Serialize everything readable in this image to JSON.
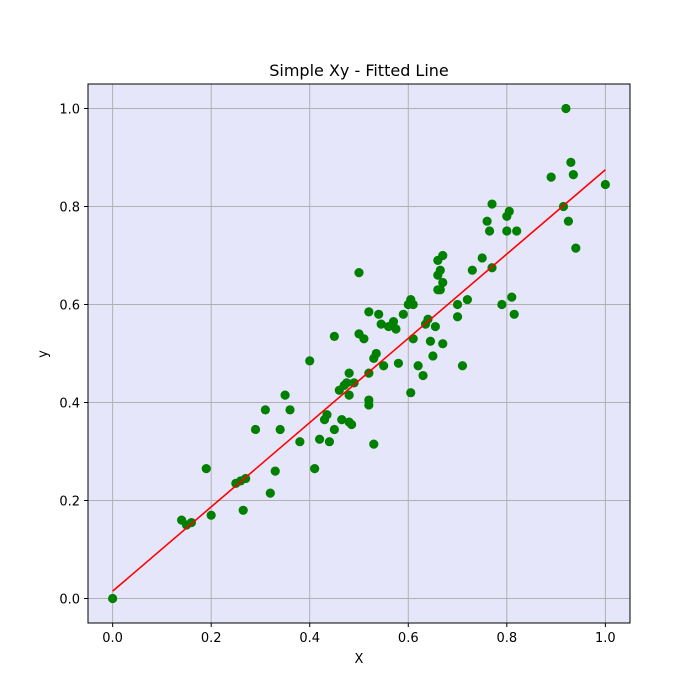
{
  "chart_data": {
    "type": "scatter",
    "title": "Simple Xy - Fitted Line",
    "xlabel": "X",
    "ylabel": "y",
    "xlim": [
      -0.05,
      1.05
    ],
    "ylim": [
      -0.05,
      1.05
    ],
    "x_ticks": [
      0.0,
      0.2,
      0.4,
      0.6,
      0.8,
      1.0
    ],
    "y_ticks": [
      0.0,
      0.2,
      0.4,
      0.6,
      0.8,
      1.0
    ],
    "x_tick_labels": [
      "0.0",
      "0.2",
      "0.4",
      "0.6",
      "0.8",
      "1.0"
    ],
    "y_tick_labels": [
      "0.0",
      "0.2",
      "0.4",
      "0.6",
      "0.8",
      "1.0"
    ],
    "grid": true,
    "background_color": "#e6e6fa",
    "grid_color": "#b0b0b0",
    "series": [
      {
        "kind": "points",
        "color": "#008000",
        "points": [
          [
            0.0,
            0.0
          ],
          [
            0.14,
            0.16
          ],
          [
            0.15,
            0.15
          ],
          [
            0.16,
            0.155
          ],
          [
            0.19,
            0.265
          ],
          [
            0.2,
            0.17
          ],
          [
            0.25,
            0.235
          ],
          [
            0.26,
            0.24
          ],
          [
            0.265,
            0.18
          ],
          [
            0.27,
            0.245
          ],
          [
            0.29,
            0.345
          ],
          [
            0.31,
            0.385
          ],
          [
            0.32,
            0.215
          ],
          [
            0.33,
            0.26
          ],
          [
            0.34,
            0.345
          ],
          [
            0.35,
            0.415
          ],
          [
            0.36,
            0.385
          ],
          [
            0.38,
            0.32
          ],
          [
            0.4,
            0.485
          ],
          [
            0.41,
            0.265
          ],
          [
            0.42,
            0.325
          ],
          [
            0.43,
            0.365
          ],
          [
            0.435,
            0.375
          ],
          [
            0.44,
            0.32
          ],
          [
            0.45,
            0.345
          ],
          [
            0.45,
            0.535
          ],
          [
            0.46,
            0.425
          ],
          [
            0.465,
            0.365
          ],
          [
            0.47,
            0.435
          ],
          [
            0.475,
            0.44
          ],
          [
            0.48,
            0.46
          ],
          [
            0.48,
            0.415
          ],
          [
            0.48,
            0.36
          ],
          [
            0.485,
            0.355
          ],
          [
            0.49,
            0.44
          ],
          [
            0.5,
            0.54
          ],
          [
            0.5,
            0.665
          ],
          [
            0.51,
            0.53
          ],
          [
            0.52,
            0.585
          ],
          [
            0.52,
            0.405
          ],
          [
            0.52,
            0.395
          ],
          [
            0.52,
            0.46
          ],
          [
            0.53,
            0.315
          ],
          [
            0.53,
            0.49
          ],
          [
            0.535,
            0.5
          ],
          [
            0.54,
            0.58
          ],
          [
            0.545,
            0.56
          ],
          [
            0.55,
            0.475
          ],
          [
            0.56,
            0.555
          ],
          [
            0.57,
            0.565
          ],
          [
            0.575,
            0.55
          ],
          [
            0.58,
            0.48
          ],
          [
            0.59,
            0.58
          ],
          [
            0.6,
            0.6
          ],
          [
            0.605,
            0.61
          ],
          [
            0.605,
            0.42
          ],
          [
            0.61,
            0.53
          ],
          [
            0.61,
            0.6
          ],
          [
            0.62,
            0.475
          ],
          [
            0.63,
            0.455
          ],
          [
            0.635,
            0.56
          ],
          [
            0.64,
            0.57
          ],
          [
            0.645,
            0.525
          ],
          [
            0.65,
            0.495
          ],
          [
            0.655,
            0.555
          ],
          [
            0.66,
            0.69
          ],
          [
            0.66,
            0.66
          ],
          [
            0.66,
            0.63
          ],
          [
            0.665,
            0.67
          ],
          [
            0.665,
            0.63
          ],
          [
            0.67,
            0.645
          ],
          [
            0.67,
            0.52
          ],
          [
            0.67,
            0.7
          ],
          [
            0.7,
            0.575
          ],
          [
            0.7,
            0.6
          ],
          [
            0.71,
            0.475
          ],
          [
            0.72,
            0.61
          ],
          [
            0.73,
            0.67
          ],
          [
            0.75,
            0.695
          ],
          [
            0.76,
            0.77
          ],
          [
            0.765,
            0.75
          ],
          [
            0.77,
            0.675
          ],
          [
            0.77,
            0.805
          ],
          [
            0.79,
            0.6
          ],
          [
            0.8,
            0.78
          ],
          [
            0.8,
            0.75
          ],
          [
            0.805,
            0.79
          ],
          [
            0.81,
            0.615
          ],
          [
            0.815,
            0.58
          ],
          [
            0.82,
            0.75
          ],
          [
            0.89,
            0.86
          ],
          [
            0.915,
            0.8
          ],
          [
            0.92,
            1.0
          ],
          [
            0.925,
            0.77
          ],
          [
            0.93,
            0.89
          ],
          [
            0.935,
            0.865
          ],
          [
            0.94,
            0.715
          ],
          [
            1.0,
            0.845
          ]
        ]
      },
      {
        "kind": "line",
        "color": "#ff0000",
        "points": [
          [
            0.0,
            0.015
          ],
          [
            1.0,
            0.875
          ]
        ]
      }
    ]
  }
}
